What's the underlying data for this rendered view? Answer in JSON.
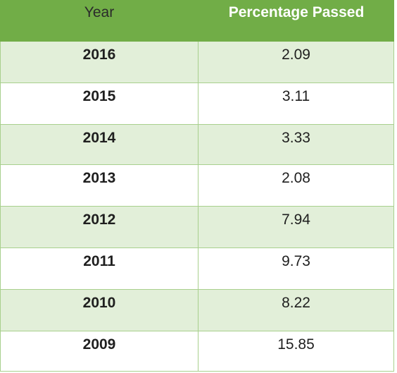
{
  "table": {
    "headers": [
      "Year",
      "Percentage Passed"
    ],
    "rows": [
      {
        "year": "2016",
        "value": "2.09"
      },
      {
        "year": "2015",
        "value": "3.11"
      },
      {
        "year": "2014",
        "value": "3.33"
      },
      {
        "year": "2013",
        "value": "2.08"
      },
      {
        "year": "2012",
        "value": "7.94"
      },
      {
        "year": "2011",
        "value": "9.73"
      },
      {
        "year": "2010",
        "value": "8.22"
      },
      {
        "year": "2009",
        "value": "15.85"
      }
    ]
  },
  "colors": {
    "header_bg": "#71ad47",
    "shaded_row_bg": "#e2efd9",
    "border": "#a8d08d"
  }
}
